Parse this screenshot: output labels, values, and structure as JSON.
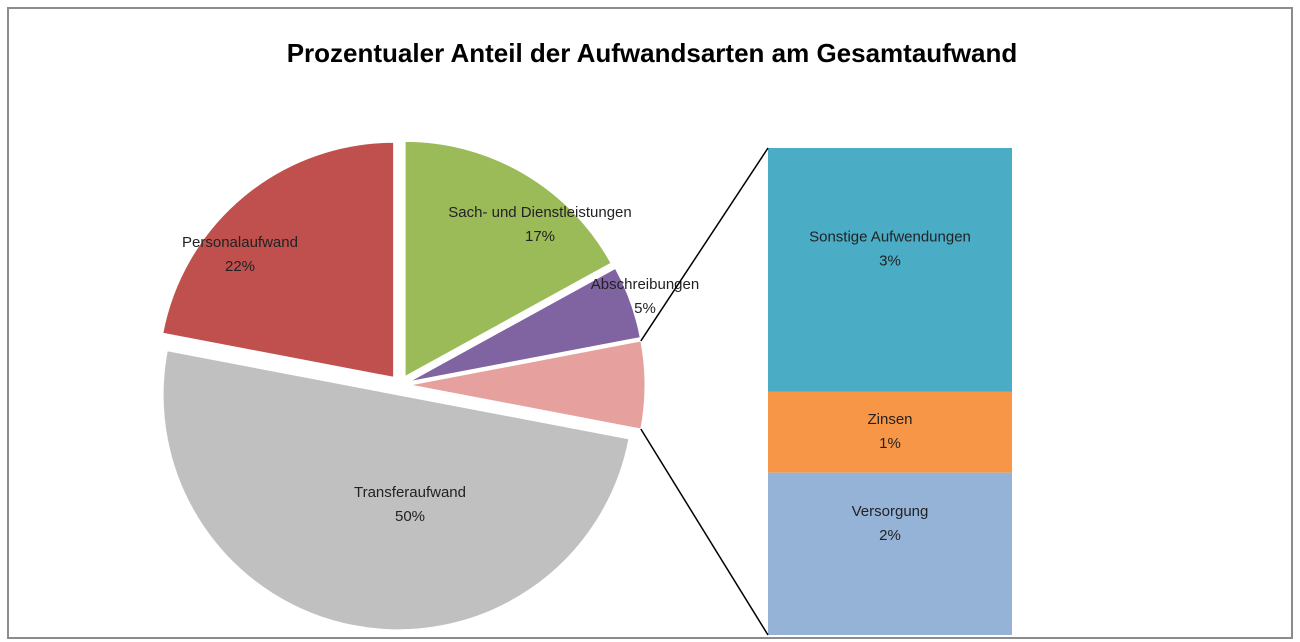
{
  "chart_data": {
    "type": "pie-of-bar",
    "title": "Prozentualer Anteil der Aufwandsarten am Gesamtaufwand",
    "categories": [
      "Personalaufwand",
      "Sach- und Dienstleistungen",
      "Abschreibungen",
      "Transferaufwand"
    ],
    "values": [
      22,
      17,
      5,
      50
    ],
    "value_labels": [
      "22%",
      "17%",
      "5%",
      "50%"
    ],
    "colors": [
      "#c0504d",
      "#9bbb59",
      "#8064a2",
      "#c0c0c0"
    ],
    "bar": {
      "categories": [
        "Sonstige Aufwendungen",
        "Zinsen",
        "Versorgung"
      ],
      "values": [
        3,
        1,
        2
      ],
      "value_labels": [
        "3%",
        "1%",
        "2%"
      ],
      "colors": [
        "#4bacc6",
        "#f79646",
        "#95b3d7"
      ]
    },
    "other_color": "#e6a09e"
  }
}
